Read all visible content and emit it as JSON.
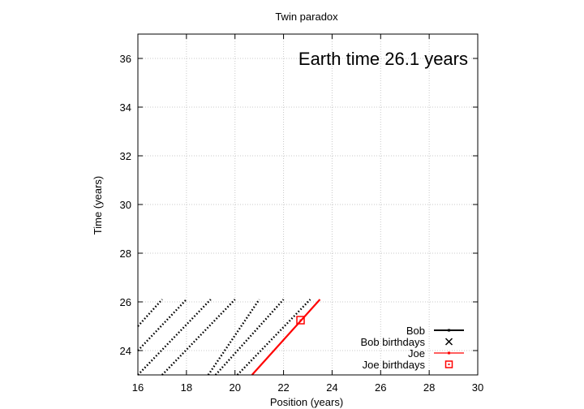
{
  "chart_data": {
    "type": "line",
    "title": "Twin paradox",
    "annotation": "Earth time 26.1 years",
    "xlabel": "Position (years)",
    "ylabel": "Time (years)",
    "xlim": [
      16,
      30
    ],
    "ylim": [
      23,
      37
    ],
    "xticks": [
      16,
      18,
      20,
      22,
      24,
      26,
      28,
      30
    ],
    "yticks": [
      24,
      26,
      28,
      30,
      32,
      34,
      36
    ],
    "grid": true,
    "legend_position": "bottom-right",
    "legend": [
      {
        "label": "Bob",
        "style": "line",
        "color": "#000000"
      },
      {
        "label": "Bob birthdays",
        "style": "cross",
        "color": "#000000"
      },
      {
        "label": "Joe",
        "style": "line",
        "color": "#ff0000"
      },
      {
        "label": "Joe birthdays",
        "style": "square",
        "color": "#ff0000"
      }
    ],
    "series": [
      {
        "name": "Bob",
        "color": "#000000",
        "segments": [
          [
            [
              16.0,
              25.0
            ],
            [
              17.0,
              26.1
            ]
          ],
          [
            [
              16.0,
              24.0
            ],
            [
              18.0,
              26.1
            ]
          ],
          [
            [
              16.0,
              23.0
            ],
            [
              19.0,
              26.1
            ]
          ],
          [
            [
              17.0,
              23.0
            ],
            [
              20.0,
              26.1
            ]
          ],
          [
            [
              18.9,
              23.0
            ],
            [
              21.0,
              26.1
            ]
          ],
          [
            [
              19.2,
              23.0
            ],
            [
              22.0,
              26.1
            ]
          ],
          [
            [
              20.1,
              23.0
            ],
            [
              23.1,
              26.1
            ]
          ]
        ]
      },
      {
        "name": "Joe",
        "color": "#ff0000",
        "segments": [
          [
            [
              20.7,
              23.0
            ],
            [
              23.5,
              26.1
            ]
          ]
        ]
      }
    ],
    "joe_birthdays": [
      [
        22.7,
        25.25
      ]
    ]
  }
}
